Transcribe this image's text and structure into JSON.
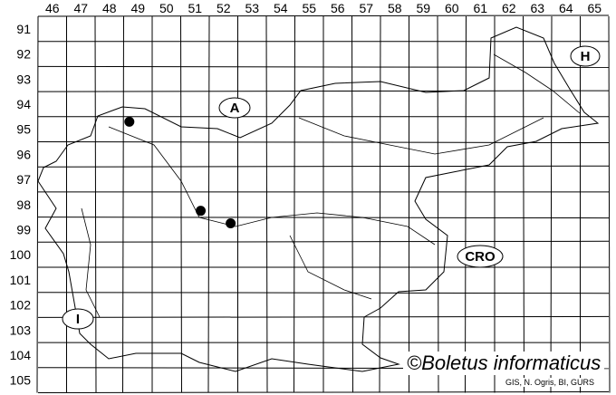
{
  "map": {
    "column_labels": [
      "46",
      "47",
      "48",
      "49",
      "50",
      "51",
      "52",
      "53",
      "54",
      "55",
      "56",
      "57",
      "58",
      "59",
      "60",
      "61",
      "62",
      "63",
      "64",
      "65"
    ],
    "row_labels": [
      "91",
      "92",
      "93",
      "94",
      "95",
      "96",
      "97",
      "98",
      "99",
      "100",
      "101",
      "102",
      "103",
      "104",
      "105"
    ],
    "country_labels": [
      {
        "id": "austria",
        "text": "A"
      },
      {
        "id": "hungary",
        "text": "H"
      },
      {
        "id": "croatia",
        "text": "CRO"
      },
      {
        "id": "italy",
        "text": "I"
      }
    ],
    "records": [
      {
        "column": "49",
        "row": "95"
      },
      {
        "column": "51",
        "row": "98"
      },
      {
        "column": "52",
        "row": "99"
      }
    ],
    "colors": {
      "lines": "#000000",
      "background": "#ffffff",
      "record_dot": "#000000"
    }
  },
  "copyright": "©Boletus informaticus",
  "credit": "GIS, N. Ogris, BI, GURS"
}
